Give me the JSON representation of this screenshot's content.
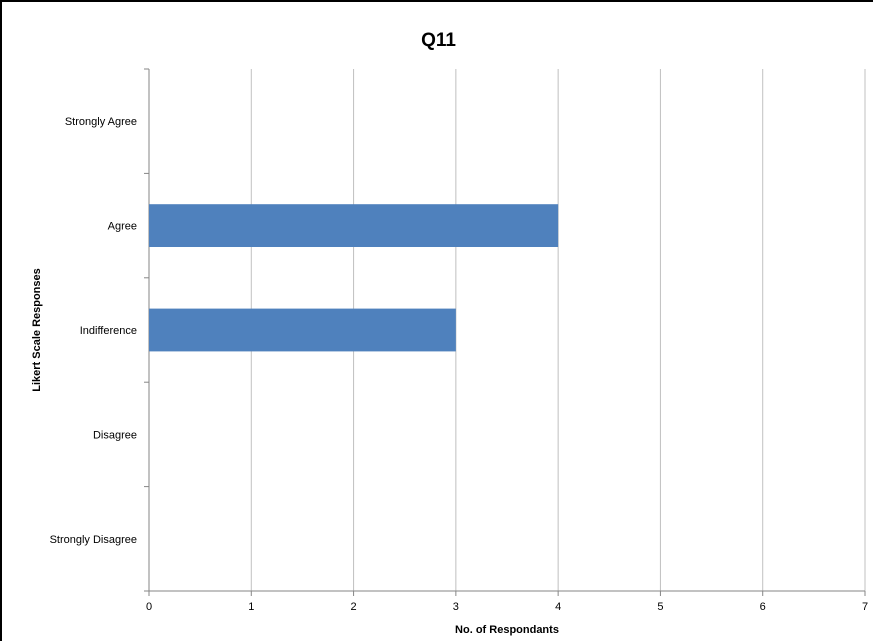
{
  "chart_data": {
    "type": "bar",
    "orientation": "horizontal",
    "title": "Q11",
    "xlabel": "No. of Respondants",
    "ylabel": "Likert Scale Responses",
    "categories": [
      "Strongly Agree",
      "Agree",
      "Indifference",
      "Disagree",
      "Strongly Disagree"
    ],
    "values": [
      0,
      4,
      3,
      0,
      0
    ],
    "xlim": [
      0,
      7
    ],
    "xticks": [
      0,
      1,
      2,
      3,
      4,
      5,
      6,
      7
    ],
    "grid": "vertical",
    "legend": "none",
    "bar_color": "#4F81BD"
  }
}
